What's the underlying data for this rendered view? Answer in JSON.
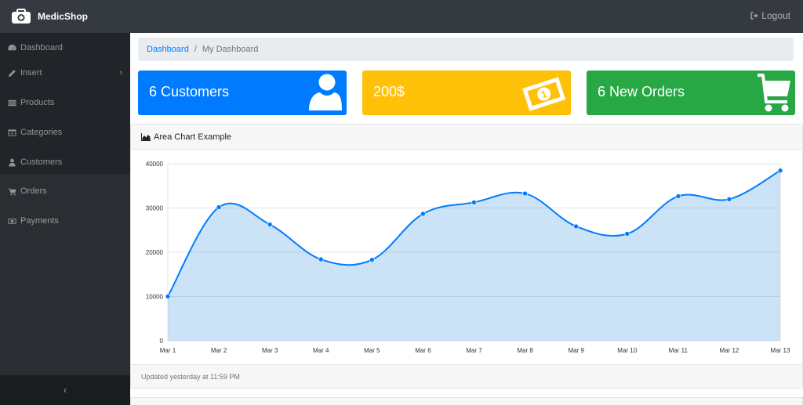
{
  "app": {
    "name": "MedicShop"
  },
  "topbar": {
    "logout_label": "Logout"
  },
  "sidebar": {
    "items": [
      {
        "label": "Dashboard",
        "icon": "dashboard-icon"
      },
      {
        "label": "Insert",
        "icon": "pencil-icon",
        "has_submenu": true
      },
      {
        "label": "Products",
        "icon": "list-icon"
      },
      {
        "label": "Categories",
        "icon": "table-icon"
      },
      {
        "label": "Customers",
        "icon": "user-icon"
      },
      {
        "label": "Orders",
        "icon": "cart-icon"
      },
      {
        "label": "Payments",
        "icon": "money-icon"
      }
    ],
    "toggle_label": "‹"
  },
  "breadcrumb": {
    "link": "Dashboard",
    "active": "My Dashboard"
  },
  "cards": [
    {
      "text": "6 Customers",
      "color": "#007bff",
      "icon": "user-icon"
    },
    {
      "text": "200$",
      "color": "#ffc107",
      "icon": "money-icon"
    },
    {
      "text": "6 New Orders",
      "color": "#28a745",
      "icon": "cart-icon"
    }
  ],
  "chart_card": {
    "title": "Area Chart Example",
    "footer": "Updated yesterday at 11:59 PM"
  },
  "chart_data": {
    "type": "area",
    "categories": [
      "Mar 1",
      "Mar 2",
      "Mar 3",
      "Mar 4",
      "Mar 5",
      "Mar 6",
      "Mar 7",
      "Mar 8",
      "Mar 9",
      "Mar 10",
      "Mar 11",
      "Mar 12",
      "Mar 13"
    ],
    "values": [
      10000,
      30162,
      26263,
      18394,
      18287,
      28682,
      31274,
      33259,
      25849,
      24159,
      32651,
      31984,
      38451
    ],
    "ylim": [
      0,
      40000
    ],
    "yticks": [
      0,
      10000,
      20000,
      30000,
      40000
    ],
    "grid": true,
    "line_color": "#007bff",
    "fill_color": "rgba(2,117,216,0.2)"
  }
}
